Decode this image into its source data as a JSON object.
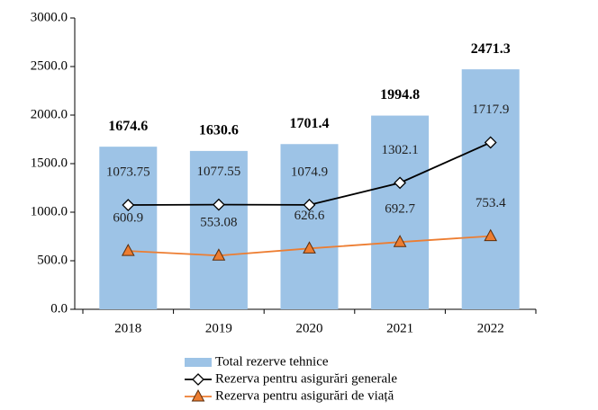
{
  "chart_data": {
    "type": "combo",
    "categories": [
      "2018",
      "2019",
      "2020",
      "2021",
      "2022"
    ],
    "series": [
      {
        "name": "Total rezerve tehnice",
        "type": "bar",
        "color": "#9dc3e6",
        "values": [
          1674.6,
          1630.6,
          1701.4,
          1994.8,
          2471.3
        ]
      },
      {
        "name": "Rezerva pentru asigurări generale",
        "type": "line",
        "marker": "diamond",
        "color": "#000000",
        "values": [
          1073.75,
          1077.55,
          1074.9,
          1302.1,
          1717.9
        ]
      },
      {
        "name": "Rezerva pentru asigurări de viață",
        "type": "line",
        "marker": "triangle",
        "color": "#ed7d31",
        "values": [
          600.9,
          553.08,
          626.6,
          692.7,
          753.4
        ]
      }
    ],
    "ylim": [
      0,
      3000
    ],
    "yticks": [
      {
        "value": 0,
        "label": "0.0"
      },
      {
        "value": 500,
        "label": "500.0"
      },
      {
        "value": 1000,
        "label": "1000.0"
      },
      {
        "value": 1500,
        "label": "1500.0"
      },
      {
        "value": 2000,
        "label": "2000.0"
      },
      {
        "value": 2500,
        "label": "2500.0"
      },
      {
        "value": 3000,
        "label": "3000.0"
      }
    ],
    "legend": "bottom"
  }
}
